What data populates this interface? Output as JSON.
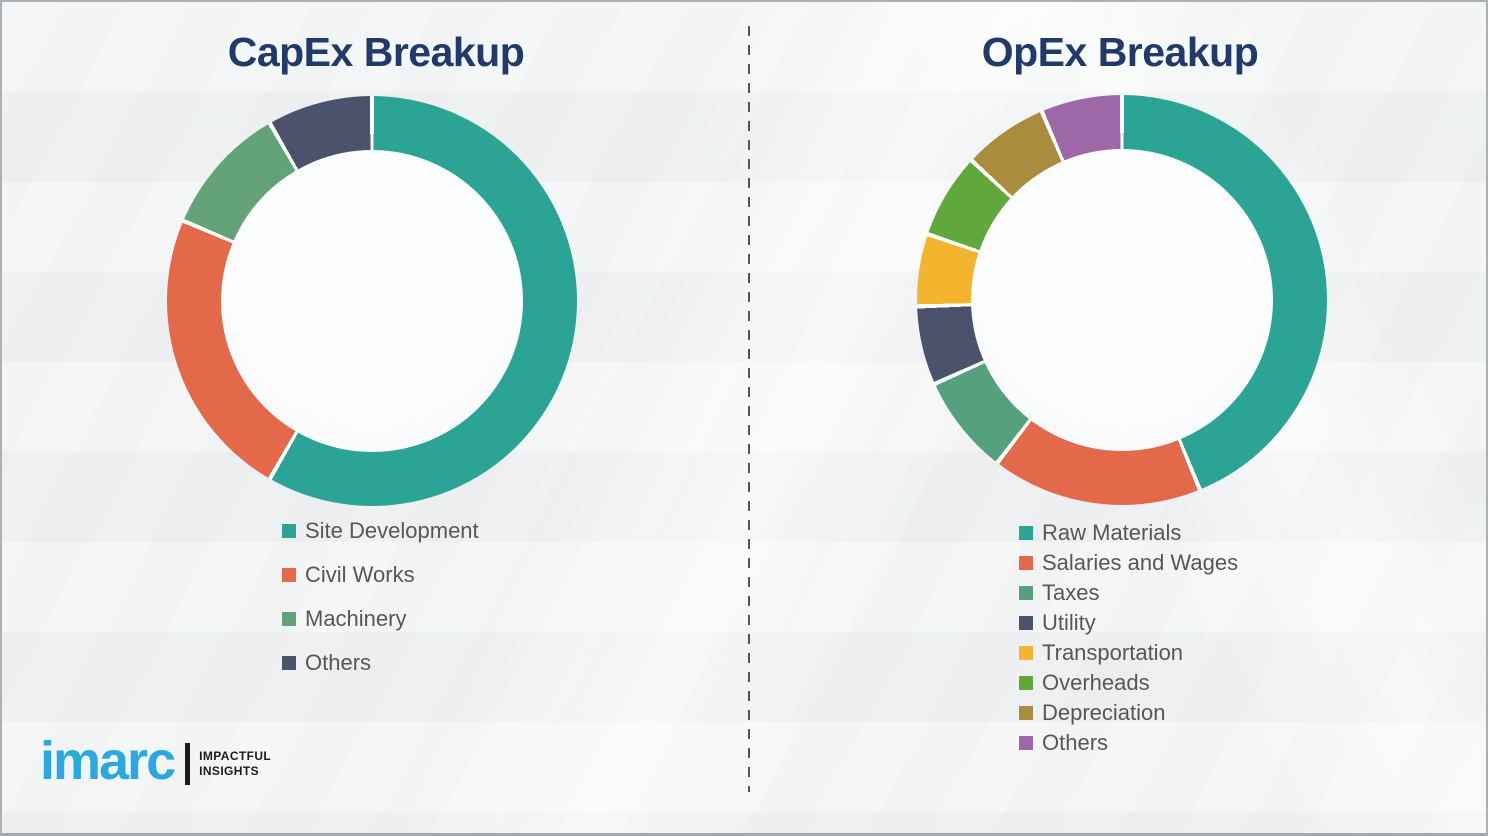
{
  "logo": {
    "brand": "imarc",
    "tagline_line1": "IMPACTFUL",
    "tagline_line2": "INSIGHTS"
  },
  "colors": {
    "title_navy": "#21396b",
    "legend_text": "#575757",
    "segment_gap_white": "#fcfdfd",
    "background": "#eff1f2",
    "divider_gray": "#54565a",
    "logo_blue": "#2aa9e0"
  },
  "chart_data": [
    {
      "type": "pie",
      "variant": "donut",
      "title": "CapEx Breakup",
      "values_estimated_from_arc_angles": true,
      "legend_position": "below-left",
      "segments": [
        {
          "label": "Site Development",
          "value": 58.3,
          "color": "#2ba496"
        },
        {
          "label": "Civil Works",
          "value": 23.1,
          "color": "#e4684a"
        },
        {
          "label": "Machinery",
          "value": 10.3,
          "color": "#63a377"
        },
        {
          "label": "Others",
          "value": 8.3,
          "color": "#4a526c"
        }
      ]
    },
    {
      "type": "pie",
      "variant": "donut",
      "title": "OpEx Breakup",
      "values_estimated_from_arc_angles": true,
      "legend_position": "below-left",
      "segments": [
        {
          "label": "Raw Materials",
          "value": 43.8,
          "color": "#2ba496"
        },
        {
          "label": "Salaries and Wages",
          "value": 16.6,
          "color": "#e4684a"
        },
        {
          "label": "Taxes",
          "value": 7.9,
          "color": "#56a17d"
        },
        {
          "label": "Utility",
          "value": 6.2,
          "color": "#4a526c"
        },
        {
          "label": "Transportation",
          "value": 5.7,
          "color": "#f4b52e"
        },
        {
          "label": "Overheads",
          "value": 6.7,
          "color": "#60a83c"
        },
        {
          "label": "Depreciation",
          "value": 6.7,
          "color": "#aa8c3f"
        },
        {
          "label": "Others",
          "value": 6.4,
          "color": "#9d67a8"
        }
      ]
    }
  ]
}
